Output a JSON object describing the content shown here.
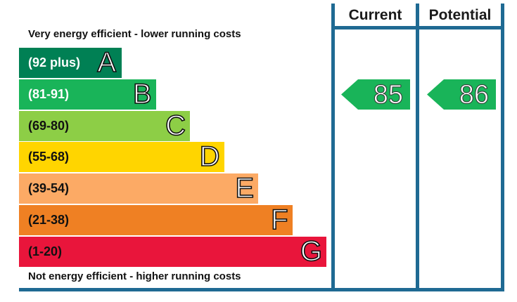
{
  "header": {
    "current_label": "Current",
    "potential_label": "Potential"
  },
  "captions": {
    "top": "Very energy efficient - lower running costs",
    "bottom": "Not energy efficient - higher running costs"
  },
  "chart_data": {
    "type": "bar",
    "categories": [
      "A",
      "B",
      "C",
      "D",
      "E",
      "F",
      "G"
    ],
    "bands": [
      {
        "letter": "A",
        "range": "(92 plus)",
        "min": 92,
        "max": null,
        "color": "#008054",
        "text_color": "#ffffff"
      },
      {
        "letter": "B",
        "range": "(81-91)",
        "min": 81,
        "max": 91,
        "color": "#19b459",
        "text_color": "#ffffff"
      },
      {
        "letter": "C",
        "range": "(69-80)",
        "min": 69,
        "max": 80,
        "color": "#8dce46",
        "text_color": "#111111"
      },
      {
        "letter": "D",
        "range": "(55-68)",
        "min": 55,
        "max": 68,
        "color": "#ffd500",
        "text_color": "#111111"
      },
      {
        "letter": "E",
        "range": "(39-54)",
        "min": 39,
        "max": 54,
        "color": "#fcaa65",
        "text_color": "#111111"
      },
      {
        "letter": "F",
        "range": "(21-38)",
        "min": 21,
        "max": 38,
        "color": "#ef8023",
        "text_color": "#111111"
      },
      {
        "letter": "G",
        "range": "(1-20)",
        "min": 1,
        "max": 20,
        "color": "#e9153b",
        "text_color": "#111111"
      }
    ],
    "current": {
      "value": 85,
      "band": "B",
      "label": "85",
      "color": "#19b459"
    },
    "potential": {
      "value": 86,
      "band": "B",
      "label": "86",
      "color": "#19b459"
    }
  }
}
